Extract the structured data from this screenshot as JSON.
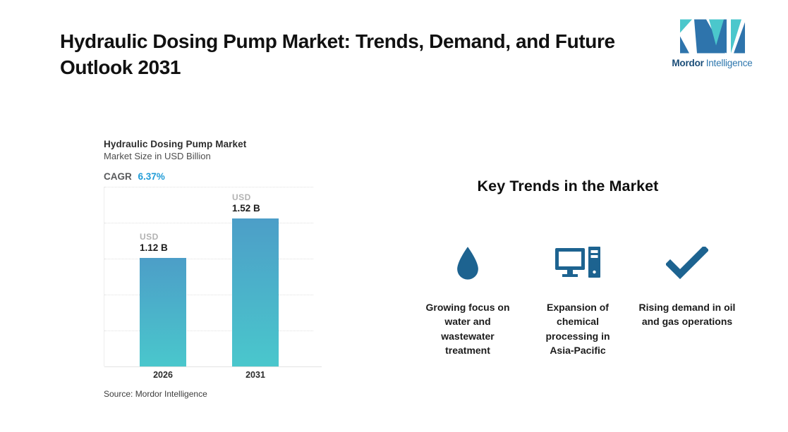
{
  "header": {
    "title": "Hydraulic Dosing Pump Market: Trends, Demand, and Future Outlook 2031"
  },
  "logo": {
    "brand_bold": "Mordor",
    "brand_regular": "Intelligence",
    "colors": {
      "teal": "#4BC7CC",
      "blue": "#2E74AC",
      "text_dark": "#1A4D78",
      "text_light": "#2E77AE"
    }
  },
  "chart": {
    "title": "Hydraulic Dosing Pump Market",
    "subtitle": "Market Size in USD Billion",
    "cagr_label": "CAGR",
    "cagr_value": "6.37%",
    "source": "Source: Mordor Intelligence",
    "bars": [
      {
        "year": "2026",
        "currency": "USD",
        "value_label": "1.12 B"
      },
      {
        "year": "2031",
        "currency": "USD",
        "value_label": "1.52 B"
      }
    ],
    "colors": {
      "bar_top": "#4C9EC8",
      "bar_bottom": "#4AC7CC",
      "cagr_value": "#1E9BD7"
    }
  },
  "chart_data": {
    "type": "bar",
    "categories": [
      "2026",
      "2031"
    ],
    "values": [
      1.12,
      1.52
    ],
    "series_name": "Market Size",
    "title": "Hydraulic Dosing Pump Market",
    "subtitle": "Market Size in USD Billion",
    "unit": "USD Billion",
    "cagr": "6.37%",
    "data_labels": [
      "USD 1.12 B",
      "USD 1.52 B"
    ],
    "xlabel": "",
    "ylabel": "",
    "ylim": [
      0,
      1.85
    ],
    "grid": "horizontal-dotted",
    "legend": "none",
    "source": "Source: Mordor Intelligence"
  },
  "trends": {
    "heading": "Key Trends in the Market",
    "icon_color": "#1D6390",
    "items": [
      {
        "icon": "water-drop-icon",
        "label": "Growing focus on water and wastewater treatment"
      },
      {
        "icon": "desktop-computer-icon",
        "label": "Expansion of chemical processing in Asia-Pacific"
      },
      {
        "icon": "checkmark-icon",
        "label": "Rising demand in oil and gas operations"
      }
    ]
  }
}
